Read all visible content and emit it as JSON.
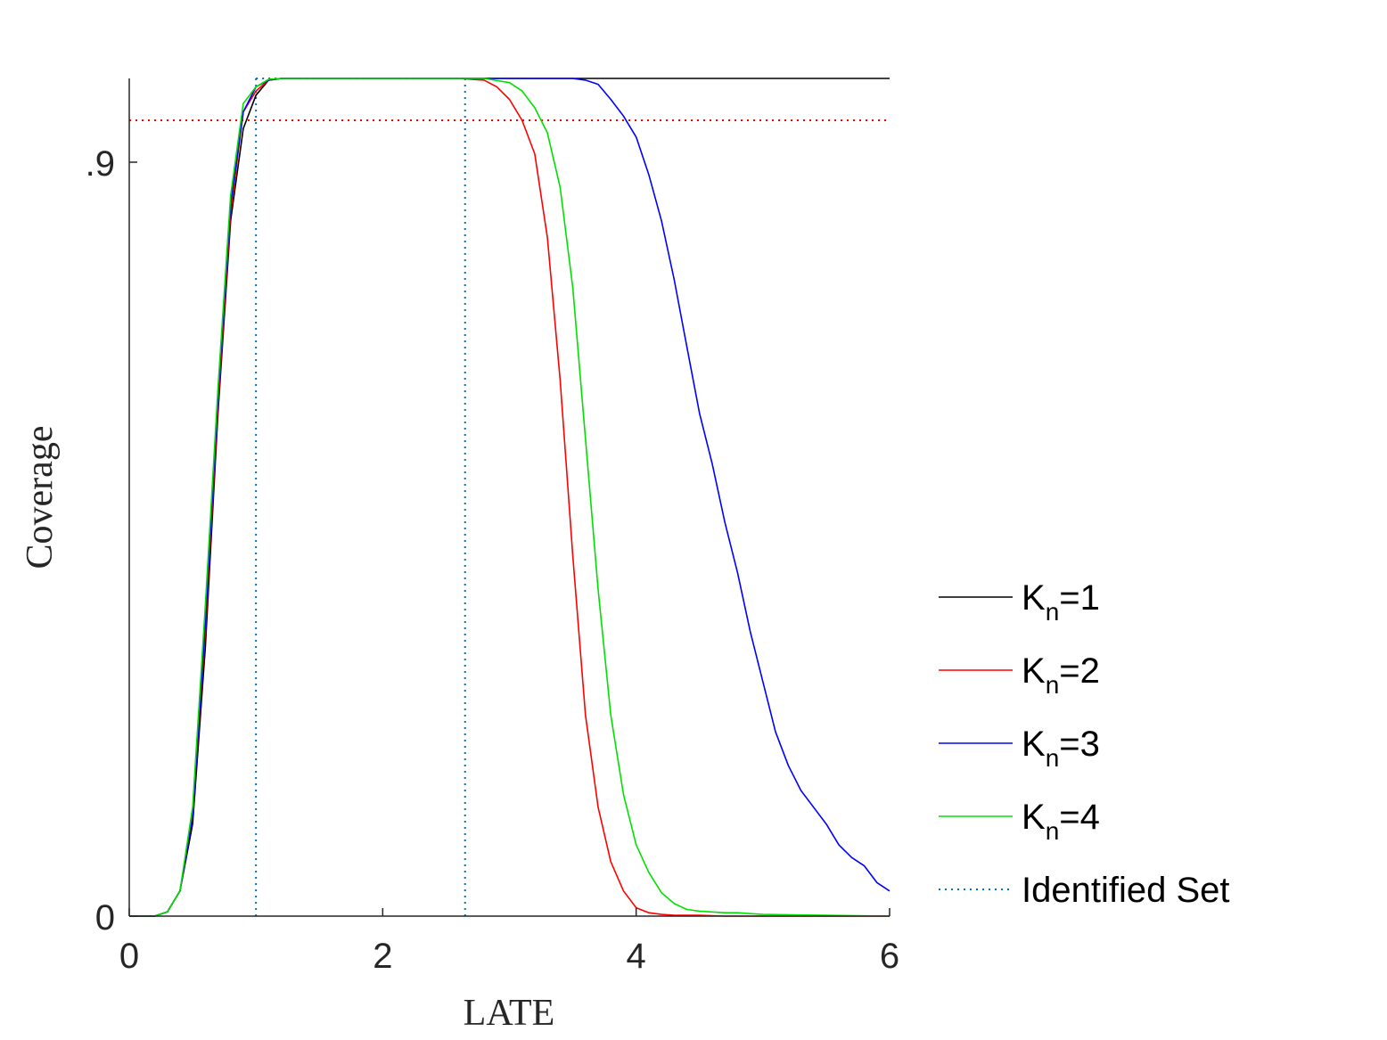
{
  "chart_data": {
    "type": "line",
    "xlabel": "LATE",
    "ylabel": "Coverage",
    "xlim": [
      0,
      6
    ],
    "ylim": [
      0,
      1
    ],
    "xticks": [
      {
        "value": 0,
        "label": "0"
      },
      {
        "value": 2,
        "label": "2"
      },
      {
        "value": 4,
        "label": "4"
      },
      {
        "value": 6,
        "label": "6"
      }
    ],
    "yticks": [
      {
        "value": 0,
        "label": "0"
      },
      {
        "value": 0.9,
        "label": ".9"
      }
    ],
    "grid": false,
    "legend_position": "right",
    "reference_lines": [
      {
        "orientation": "horizontal",
        "value": 0.95,
        "color": "#ff0000",
        "style": "dotted"
      },
      {
        "orientation": "vertical",
        "value": 1.0,
        "color": "#0072bd",
        "style": "dotted"
      },
      {
        "orientation": "vertical",
        "value": 2.65,
        "color": "#0072bd",
        "style": "dotted"
      }
    ],
    "identified_set_top": {
      "x": [
        1.0,
        2.65
      ],
      "y": 1.0
    },
    "series": [
      {
        "name": "K",
        "sub": "n",
        "suffix": "=1",
        "color": "#000000",
        "x": [
          0,
          0.2,
          0.3,
          0.4,
          0.5,
          0.6,
          0.7,
          0.8,
          0.9,
          1.0,
          1.1,
          1.2,
          1.5,
          2.0,
          3.0,
          4.0,
          5.0,
          6.0
        ],
        "y": [
          0,
          0,
          0.005,
          0.03,
          0.11,
          0.32,
          0.6,
          0.83,
          0.94,
          0.98,
          0.998,
          1.0,
          1.0,
          1.0,
          1.0,
          1.0,
          1.0,
          1.0
        ]
      },
      {
        "name": "K",
        "sub": "n",
        "suffix": "=2",
        "color": "#ff0000",
        "x": [
          0,
          0.2,
          0.3,
          0.4,
          0.5,
          0.6,
          0.7,
          0.8,
          0.9,
          1.0,
          1.1,
          1.2,
          1.5,
          2.0,
          2.6,
          2.8,
          2.9,
          3.0,
          3.1,
          3.2,
          3.3,
          3.4,
          3.5,
          3.6,
          3.7,
          3.8,
          3.9,
          4.0,
          4.1,
          4.2,
          4.3,
          4.5,
          4.6,
          4.7,
          5.0,
          6.0
        ],
        "y": [
          0,
          0,
          0.005,
          0.03,
          0.12,
          0.34,
          0.61,
          0.84,
          0.96,
          0.985,
          0.998,
          1.0,
          1.0,
          1.0,
          1.0,
          0.998,
          0.99,
          0.975,
          0.95,
          0.91,
          0.81,
          0.64,
          0.43,
          0.24,
          0.13,
          0.065,
          0.03,
          0.01,
          0.004,
          0.002,
          0.001,
          0.001,
          0.0005,
          0,
          0,
          0
        ]
      },
      {
        "name": "K",
        "sub": "n",
        "suffix": "=3",
        "color": "#0000ff",
        "x": [
          0,
          0.2,
          0.3,
          0.4,
          0.5,
          0.6,
          0.7,
          0.8,
          0.9,
          1.0,
          1.1,
          1.2,
          1.5,
          2.0,
          3.0,
          3.5,
          3.6,
          3.7,
          3.8,
          3.9,
          4.0,
          4.1,
          4.2,
          4.3,
          4.4,
          4.5,
          4.6,
          4.7,
          4.8,
          4.9,
          5.0,
          5.1,
          5.2,
          5.3,
          5.4,
          5.5,
          5.6,
          5.7,
          5.8,
          5.9,
          6.0
        ],
        "y": [
          0,
          0,
          0.005,
          0.03,
          0.12,
          0.35,
          0.62,
          0.85,
          0.96,
          0.99,
          0.998,
          1.0,
          1.0,
          1.0,
          1.0,
          1.0,
          0.998,
          0.993,
          0.975,
          0.955,
          0.93,
          0.885,
          0.83,
          0.76,
          0.68,
          0.6,
          0.54,
          0.47,
          0.41,
          0.34,
          0.28,
          0.22,
          0.18,
          0.15,
          0.13,
          0.11,
          0.085,
          0.07,
          0.06,
          0.04,
          0.03
        ]
      },
      {
        "name": "K",
        "sub": "n",
        "suffix": "=4",
        "color": "#00e000",
        "x": [
          0,
          0.2,
          0.3,
          0.4,
          0.5,
          0.6,
          0.7,
          0.8,
          0.9,
          1.0,
          1.1,
          1.2,
          1.5,
          2.0,
          2.8,
          3.0,
          3.1,
          3.2,
          3.3,
          3.4,
          3.5,
          3.6,
          3.7,
          3.8,
          3.9,
          4.0,
          4.1,
          4.2,
          4.3,
          4.4,
          4.5,
          4.6,
          4.7,
          4.8,
          4.9,
          5.0,
          6.0
        ],
        "y": [
          0,
          0,
          0.005,
          0.03,
          0.13,
          0.37,
          0.63,
          0.86,
          0.97,
          0.99,
          0.999,
          1.0,
          1.0,
          1.0,
          1.0,
          0.995,
          0.985,
          0.965,
          0.935,
          0.87,
          0.75,
          0.57,
          0.39,
          0.24,
          0.145,
          0.085,
          0.052,
          0.028,
          0.015,
          0.008,
          0.006,
          0.005,
          0.004,
          0.004,
          0.003,
          0.002,
          0
        ]
      }
    ],
    "legend_extra": {
      "label": "Identified Set",
      "color": "#0072bd",
      "style": "dotted"
    }
  }
}
